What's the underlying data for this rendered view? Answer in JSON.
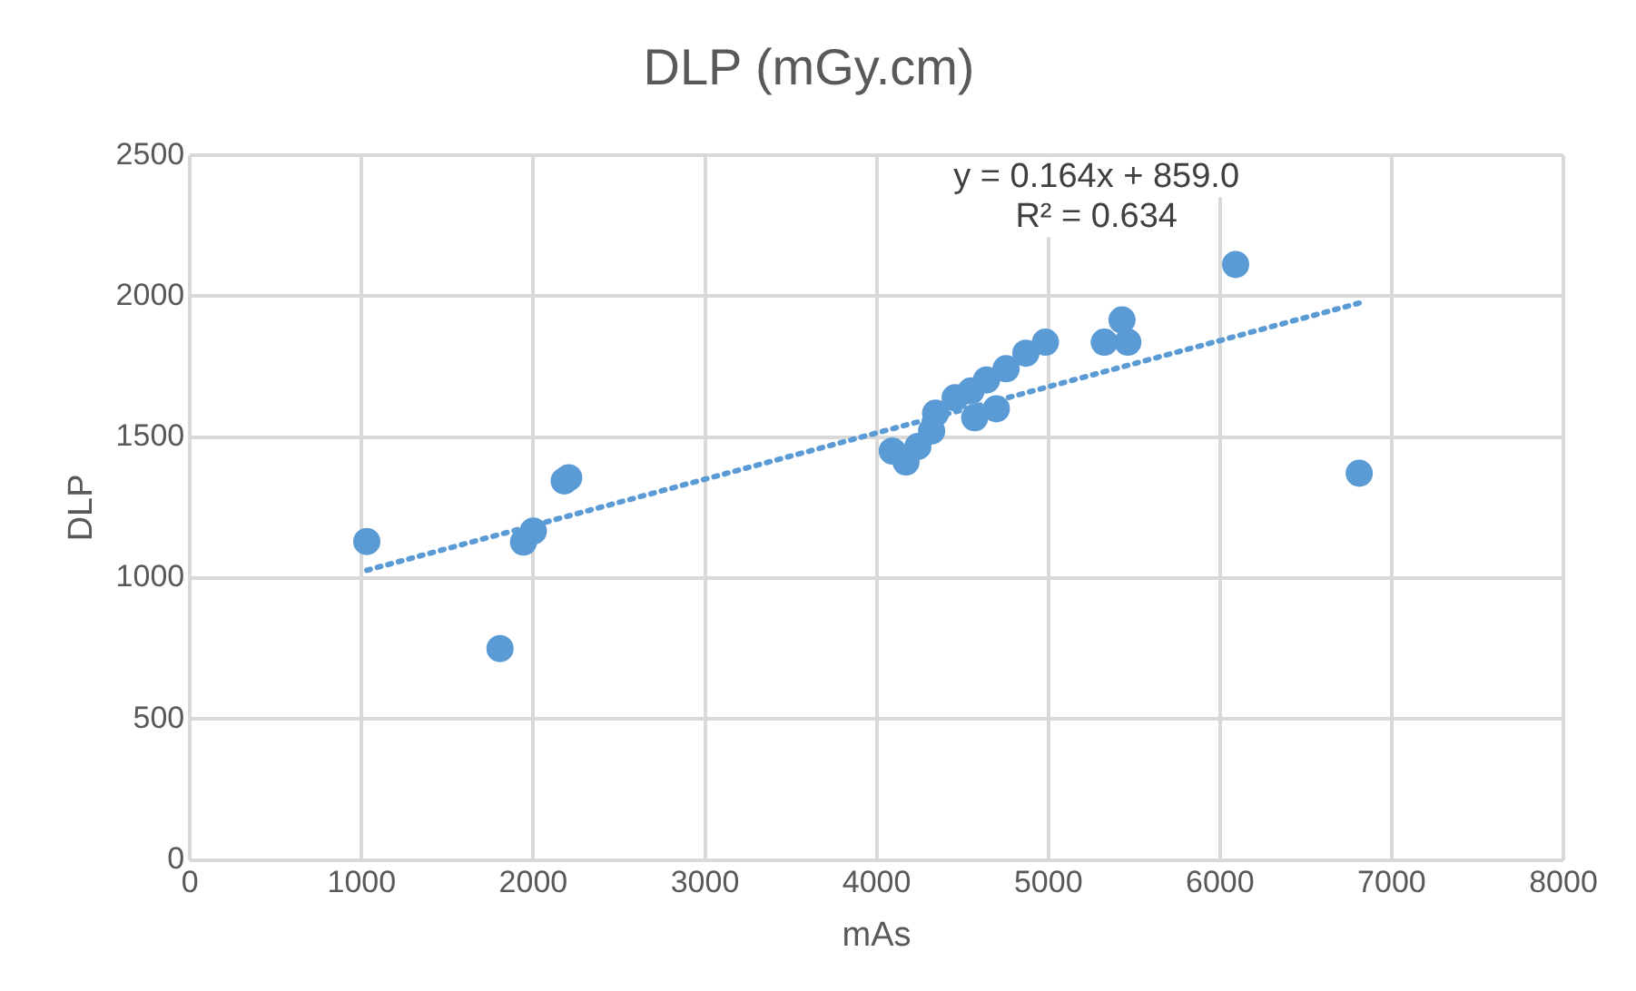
{
  "chart_data": {
    "type": "scatter",
    "title": "DLP (mGy.cm)",
    "xlabel": "mAs",
    "ylabel": "DLP",
    "xlim": [
      0,
      8000
    ],
    "xticks": [
      0,
      1000,
      2000,
      3000,
      4000,
      5000,
      6000,
      7000,
      8000
    ],
    "ylim": [
      0,
      2500
    ],
    "yticks": [
      0,
      500,
      1000,
      1500,
      2000,
      2500
    ],
    "grid": true,
    "legend": false,
    "marker": "circle",
    "series": [
      {
        "type": "scatter",
        "color": "#5b9bd5",
        "x": [
          1030,
          1806,
          1943,
          2000,
          2180,
          2206,
          4091,
          4171,
          4240,
          4320,
          4343,
          4457,
          4549,
          4571,
          4640,
          4697,
          4754,
          4869,
          4983,
          5326,
          5429,
          5463,
          6091,
          6811
        ],
        "values": [
          1130,
          750,
          1128,
          1167,
          1345,
          1356,
          1451,
          1412,
          1467,
          1522,
          1585,
          1640,
          1664,
          1569,
          1703,
          1601,
          1743,
          1798,
          1837,
          1837,
          1916,
          1837,
          2113,
          1372
        ]
      },
      {
        "type": "line",
        "color": "#5b9bd5",
        "line_style": "dotted",
        "marker": "none",
        "x": [
          1030,
          6811
        ],
        "values": [
          1028,
          1976
        ]
      }
    ],
    "annotations": [
      "y = 0.164x + 859.0",
      "R² = 0.634"
    ]
  }
}
